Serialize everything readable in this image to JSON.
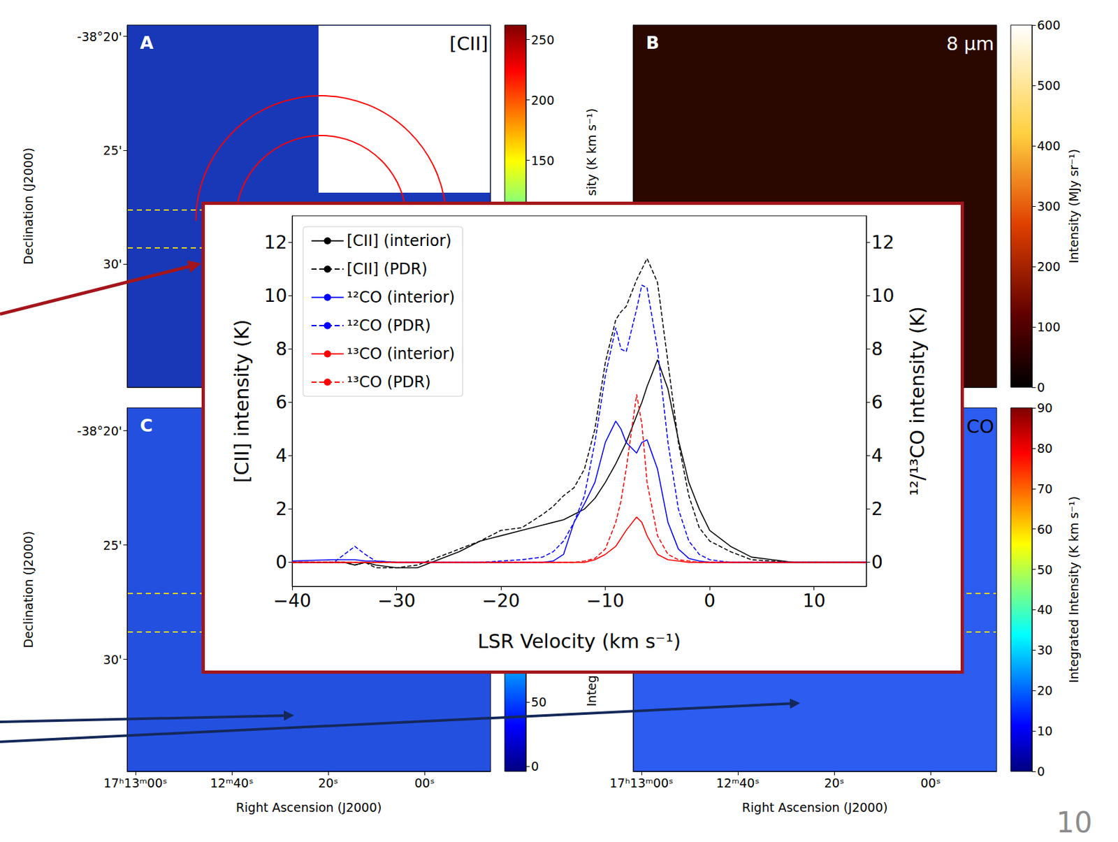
{
  "chart_data": [
    {
      "type": "image",
      "label": "A",
      "title": "[CII]",
      "xlim": [
        61.7,
        -13.7
      ],
      "ylim": [
        35.4,
        19.5
      ],
      "yticks": [
        {
          "value": 20,
          "label": "-38°20'"
        },
        {
          "value": 25,
          "label": "25'"
        },
        {
          "value": 30,
          "label": "30'"
        }
      ],
      "ylabel": "Declination (J2000)",
      "colorbar": {
        "range": [
          -38,
          262
        ],
        "ticks": [
          150,
          200,
          250
        ],
        "label": "sity (K km s⁻¹)"
      }
    },
    {
      "type": "image",
      "label": "B",
      "title": "8 μm",
      "xlim": [
        61.7,
        -13.7
      ],
      "ylim": [
        35.4,
        19.5
      ],
      "colorbar": {
        "range": [
          0,
          600
        ],
        "ticks": [
          0,
          100,
          200,
          300,
          400,
          500,
          600
        ],
        "label": "Intensity (MJy sr⁻¹)"
      }
    },
    {
      "type": "image",
      "label": "C",
      "xlim": [
        61.7,
        -13.7
      ],
      "ylim": [
        34.9,
        19.0
      ],
      "xticks": [
        {
          "value": 60,
          "label": "17ʰ13ᵐ00ˢ"
        },
        {
          "value": 40,
          "label": "12ᵐ40ˢ"
        },
        {
          "value": 20,
          "label": "20ˢ"
        },
        {
          "value": 0,
          "label": "00ˢ"
        }
      ],
      "yticks": [
        {
          "value": 20,
          "label": "-38°20'"
        },
        {
          "value": 25,
          "label": "25'"
        },
        {
          "value": 30,
          "label": "30'"
        }
      ],
      "xlabel": "Right Ascension (J2000)",
      "ylabel": "Declination (J2000)",
      "colorbar": {
        "range": [
          -4,
          279
        ],
        "ticks": [
          0,
          50
        ],
        "label": "Integ"
      }
    },
    {
      "type": "image",
      "title": "CO",
      "xlim": [
        61.7,
        -13.7
      ],
      "ylim": [
        34.9,
        19.0
      ],
      "xticks": [
        {
          "value": 60,
          "label": "17ʰ13ᵐ00ˢ"
        },
        {
          "value": 40,
          "label": "12ᵐ40ˢ"
        },
        {
          "value": 20,
          "label": "20ˢ"
        },
        {
          "value": 0,
          "label": "00ˢ"
        }
      ],
      "xlabel": "Right Ascension (J2000)",
      "colorbar": {
        "range": [
          0,
          90
        ],
        "ticks": [
          0,
          10,
          20,
          30,
          40,
          50,
          60,
          70,
          80,
          90
        ],
        "label": "Integrated Intensity (K km s⁻¹)"
      }
    },
    {
      "type": "line",
      "xlabel": "LSR Velocity (km s⁻¹)",
      "ylabel": "[CII] intensity (K)",
      "y2label": "¹²/¹³CO intensity (K)",
      "x": [
        -40,
        -36,
        -35,
        -34,
        -33,
        -32,
        -30,
        -28,
        -26,
        -24,
        -22,
        -20,
        -18,
        -16,
        -15,
        -14,
        -13,
        -12,
        -11,
        -10,
        -9,
        -8.5,
        -8,
        -7,
        -6.5,
        -6,
        -5,
        -4,
        -3,
        -2,
        -1,
        0,
        2,
        4,
        6,
        8,
        10,
        12,
        15
      ],
      "series": [
        {
          "name": "[CII] (interior)",
          "color": "#000000",
          "line_style": "solid",
          "values": [
            0,
            0,
            0,
            -0.1,
            0,
            -0.1,
            -0.2,
            -0.2,
            0.1,
            0.4,
            0.8,
            1.0,
            1.2,
            1.4,
            1.5,
            1.6,
            1.8,
            2.0,
            2.4,
            3.0,
            3.7,
            4.1,
            4.5,
            5.5,
            6.0,
            6.6,
            7.6,
            6.5,
            4.6,
            3.0,
            2.0,
            1.2,
            0.6,
            0.2,
            0.1,
            0,
            0,
            0,
            0
          ]
        },
        {
          "name": "[CII] (PDR)",
          "color": "#000000",
          "line_style": "dashed",
          "values": [
            0,
            0,
            0,
            -0.1,
            0,
            -0.2,
            -0.2,
            -0.1,
            0.2,
            0.5,
            0.8,
            1.2,
            1.3,
            1.8,
            2.1,
            2.5,
            2.8,
            3.5,
            5.0,
            7.5,
            9.1,
            9.4,
            9.6,
            10.6,
            11.0,
            11.4,
            10.5,
            7.5,
            4.5,
            2.5,
            1.3,
            0.8,
            0.4,
            0.1,
            0.05,
            0,
            0,
            0,
            0
          ]
        },
        {
          "name": "¹²CO (interior)",
          "color": "#0000ff",
          "line_style": "solid",
          "axis": "y2",
          "values": [
            0.05,
            0.1,
            0.1,
            0.1,
            0.05,
            0.05,
            0,
            0,
            0,
            0,
            0,
            0,
            0,
            0,
            0.05,
            0.3,
            1.5,
            2.2,
            3.0,
            4.5,
            5.3,
            5.0,
            4.5,
            4.1,
            4.5,
            4.6,
            3.5,
            1.5,
            0.5,
            0.15,
            0.05,
            0,
            0,
            0,
            0,
            0,
            0,
            0,
            0
          ]
        },
        {
          "name": "¹²CO (PDR)",
          "color": "#0000ff",
          "line_style": "dashed",
          "axis": "y2",
          "values": [
            0,
            0,
            0.3,
            0.6,
            0.3,
            0.05,
            0,
            0,
            0,
            0,
            0,
            0.05,
            0.1,
            0.2,
            0.4,
            0.8,
            1.5,
            2.5,
            4.5,
            7.0,
            8.8,
            8.0,
            7.9,
            9.5,
            10.4,
            10.3,
            8.0,
            4.5,
            2.0,
            0.8,
            0.3,
            0.1,
            0,
            0,
            0,
            0,
            0,
            0,
            0
          ]
        },
        {
          "name": "¹³CO (interior)",
          "color": "#ff0000",
          "line_style": "solid",
          "axis": "y2",
          "values": [
            0,
            0,
            0,
            0,
            0,
            0,
            0,
            0,
            0,
            0,
            0,
            0,
            0,
            0,
            0,
            0,
            0,
            0,
            0.1,
            0.3,
            0.6,
            0.9,
            1.2,
            1.7,
            1.5,
            1.0,
            0.3,
            0.1,
            0.05,
            0,
            0,
            0,
            0,
            0,
            0,
            0,
            0,
            0,
            0
          ]
        },
        {
          "name": "¹³CO (PDR)",
          "color": "#ff0000",
          "line_style": "dashed",
          "axis": "y2",
          "values": [
            0,
            0,
            0,
            0,
            0,
            0,
            0,
            0,
            0,
            0,
            0,
            0,
            0,
            0,
            0,
            0,
            0,
            0.05,
            0.15,
            0.5,
            1.5,
            2.3,
            3.5,
            6.3,
            5.2,
            3.0,
            1.0,
            0.3,
            0.1,
            0.05,
            0,
            0,
            0,
            0,
            0,
            0,
            0,
            0,
            0
          ]
        }
      ],
      "xlim": [
        -40,
        15
      ],
      "xticks": [
        {
          "value": -40,
          "label": "−40"
        },
        {
          "value": -30,
          "label": "−30"
        },
        {
          "value": -20,
          "label": "−20"
        },
        {
          "value": -10,
          "label": "−10"
        },
        0,
        10
      ],
      "ylim": [
        -0.9,
        13
      ],
      "yticks": [
        0,
        2,
        4,
        6,
        8,
        10,
        12
      ],
      "y2lim": [
        -0.9,
        13
      ],
      "y2ticks": [
        0,
        2,
        4,
        6,
        8,
        10,
        12
      ],
      "legend": "upper left"
    }
  ],
  "slide_number": "10"
}
